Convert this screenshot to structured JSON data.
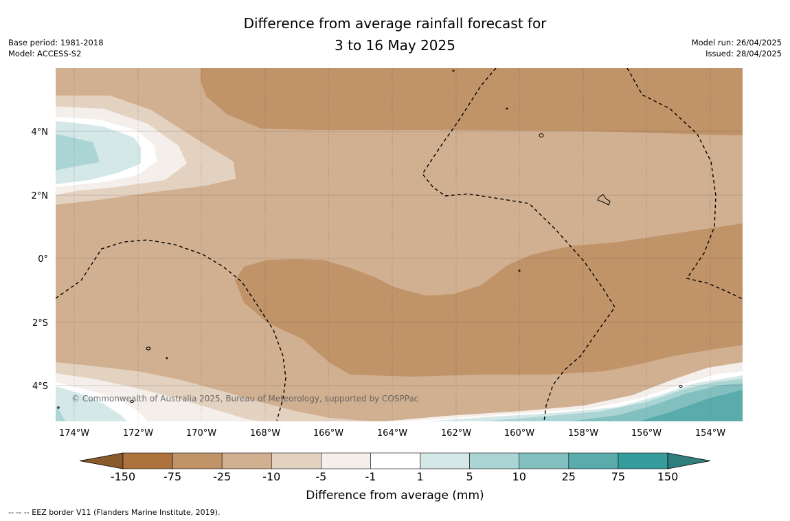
{
  "title": {
    "line1": "Difference from average rainfall forecast for",
    "line2": "3 to 16 May 2025"
  },
  "meta_left": {
    "base_period": "Base period: 1981-2018",
    "model": "Model: ACCESS-S2"
  },
  "meta_right": {
    "model_run": "Model run: 26/04/2025",
    "issued": "Issued: 28/04/2025"
  },
  "map": {
    "lat_labels": [
      "4°N",
      "2°N",
      "0°",
      "2°S",
      "4°S"
    ],
    "lon_labels": [
      "174°W",
      "172°W",
      "170°W",
      "168°W",
      "166°W",
      "164°W",
      "162°W",
      "160°W",
      "158°W",
      "156°W",
      "154°W"
    ],
    "copyright": "© Commonwealth of Australia 2025, Bureau of Meteorology, supported by COSPPac",
    "eez_border_style": "dashed"
  },
  "colorbar": {
    "label": "Difference from average (mm)",
    "tick_labels": [
      "-150",
      "-75",
      "-25",
      "-10",
      "-5",
      "-1",
      "1",
      "5",
      "10",
      "25",
      "75",
      "150"
    ],
    "colors": [
      "#8a5a2a",
      "#ad733e",
      "#c09369",
      "#d1b091",
      "#e4d2c1",
      "#f4efea",
      "#ffffff",
      "#d4e8e8",
      "#abd5d5",
      "#82c0c0",
      "#5aacac",
      "#369b9a",
      "#2e7f7e"
    ]
  },
  "footer": {
    "text": "--  --  -- EEZ border V11 (Flanders Marine Institute, 2019)."
  }
}
